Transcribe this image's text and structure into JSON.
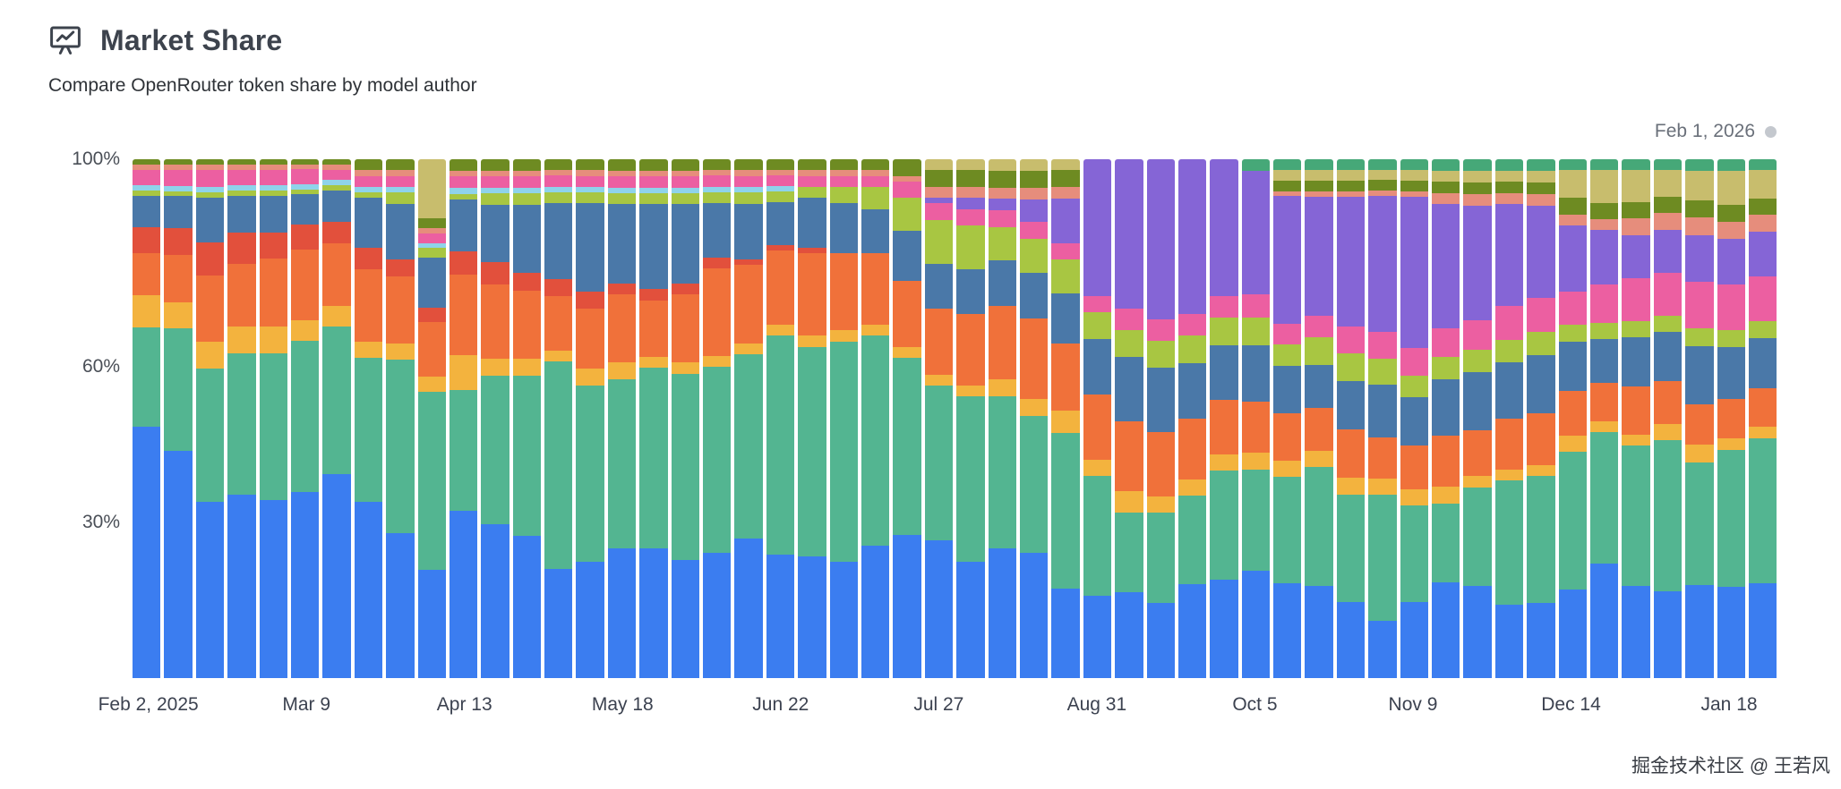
{
  "header": {
    "title": "Market Share",
    "subtitle": "Compare OpenRouter token share by model author",
    "icon": "presentation-chart-icon"
  },
  "chart": {
    "date_label": "Feb 1, 2026",
    "marker_color": "#c4c8ce"
  },
  "watermark": {
    "text": "掘金技术社区 @ 王若风"
  },
  "chart_data": {
    "type": "bar",
    "stacked": true,
    "unit": "percent-share",
    "title": "Market Share",
    "xlabel": "",
    "ylabel": "",
    "ylim": [
      0,
      100
    ],
    "grid": false,
    "legend": "none",
    "stack_order": "bottom-to-top",
    "categories": [
      "Feb 2, 2025",
      "Feb 9",
      "Feb 16",
      "Feb 23",
      "Mar 2",
      "Mar 9",
      "Mar 16",
      "Mar 23",
      "Mar 30",
      "Apr 6",
      "Apr 13",
      "Apr 20",
      "Apr 27",
      "May 4",
      "May 11",
      "May 18",
      "May 25",
      "Jun 1",
      "Jun 8",
      "Jun 15",
      "Jun 22",
      "Jun 29",
      "Jul 6",
      "Jul 13",
      "Jul 20",
      "Jul 27",
      "Aug 3",
      "Aug 10",
      "Aug 17",
      "Aug 24",
      "Aug 31",
      "Sep 7",
      "Sep 14",
      "Sep 21",
      "Sep 28",
      "Oct 5",
      "Oct 12",
      "Oct 19",
      "Oct 26",
      "Nov 2",
      "Nov 9",
      "Nov 16",
      "Nov 23",
      "Nov 30",
      "Dec 7",
      "Dec 14",
      "Dec 21",
      "Dec 28",
      "Jan 4, 2026",
      "Jan 11",
      "Jan 18",
      "Jan 25"
    ],
    "yticks": [
      {
        "label": "100%",
        "value": 100
      },
      {
        "label": "60%",
        "value": 60
      },
      {
        "label": "30%",
        "value": 30
      }
    ],
    "xticks": [
      {
        "label": "Feb 2, 2025",
        "index": 0
      },
      {
        "label": "Mar 9",
        "index": 5
      },
      {
        "label": "Apr 13",
        "index": 10
      },
      {
        "label": "May 18",
        "index": 15
      },
      {
        "label": "Jun 22",
        "index": 20
      },
      {
        "label": "Jul 27",
        "index": 25
      },
      {
        "label": "Aug 31",
        "index": 30
      },
      {
        "label": "Oct 5",
        "index": 35
      },
      {
        "label": "Nov 9",
        "index": 40
      },
      {
        "label": "Dec 14",
        "index": 45
      },
      {
        "label": "Jan 18",
        "index": 50
      }
    ],
    "series": [
      {
        "name": "blue",
        "color": "#3b7df0",
        "values": [
          48,
          43,
          32,
          35,
          34,
          37,
          39,
          32,
          26,
          22,
          29,
          27,
          25,
          20,
          21,
          23,
          23,
          21,
          23,
          25,
          23,
          22,
          21,
          24,
          26,
          25,
          21,
          23,
          22,
          16,
          15,
          16,
          14,
          17,
          18,
          19,
          18,
          17,
          14,
          11,
          14,
          17,
          16,
          13,
          13,
          16,
          21,
          17,
          16,
          16,
          16,
          17
        ]
      },
      {
        "name": "green",
        "color": "#53b591",
        "values": [
          19,
          23,
          24,
          27,
          28,
          30,
          28,
          26,
          31,
          36,
          21,
          26,
          28,
          38,
          32,
          30,
          32,
          33,
          34,
          33,
          41,
          38,
          40,
          38,
          32,
          28,
          30,
          27,
          24,
          28,
          22,
          15,
          17,
          16,
          20,
          18,
          20,
          22,
          20,
          24,
          18,
          14,
          17,
          22,
          22,
          25,
          24,
          26,
          28,
          21,
          24,
          26
        ]
      },
      {
        "name": "gold",
        "color": "#f3b33e",
        "values": [
          6,
          5,
          5,
          5,
          5,
          4,
          4,
          3,
          3,
          3,
          6,
          3,
          3,
          2,
          3,
          3,
          2,
          2,
          2,
          2,
          2,
          2,
          2,
          2,
          2,
          2,
          2,
          3,
          3,
          4,
          3,
          4,
          3,
          3,
          3,
          3,
          3,
          3,
          3,
          3,
          3,
          3,
          2,
          2,
          2,
          3,
          2,
          2,
          3,
          3,
          2,
          2
        ]
      },
      {
        "name": "orange",
        "color": "#f0713a",
        "values": [
          8,
          9,
          12,
          12,
          13,
          14,
          12,
          13,
          12,
          11,
          14,
          13,
          12,
          10,
          11,
          12,
          10,
          12,
          16,
          14,
          14,
          15,
          14,
          13,
          12,
          12,
          13,
          13,
          14,
          12,
          12,
          13,
          12,
          11,
          10,
          9,
          9,
          8,
          9,
          8,
          8,
          9,
          8,
          9,
          9,
          8,
          7,
          9,
          8,
          7,
          7,
          7
        ]
      },
      {
        "name": "red",
        "color": "#e2503c",
        "values": [
          5,
          5,
          6,
          6,
          5,
          5,
          4,
          4,
          3,
          3,
          4,
          4,
          3,
          3,
          3,
          2,
          2,
          2,
          2,
          1,
          1,
          1,
          0,
          0,
          0,
          0,
          0,
          0,
          0,
          0,
          0,
          0,
          0,
          0,
          0,
          0,
          0,
          0,
          0,
          0,
          0,
          0,
          0,
          0,
          0,
          0,
          0,
          0,
          0,
          0,
          0,
          0
        ]
      },
      {
        "name": "steel",
        "color": "#4a78a8",
        "values": [
          6,
          6,
          8,
          7,
          7,
          6,
          6,
          9,
          10,
          10,
          9,
          10,
          12,
          14,
          16,
          14,
          15,
          14,
          10,
          10,
          8,
          9,
          9,
          8,
          9,
          8,
          8,
          8,
          8,
          9,
          10,
          12,
          12,
          10,
          10,
          10,
          9,
          8,
          9,
          10,
          9,
          10,
          10,
          10,
          10,
          9,
          8,
          9,
          9,
          10,
          9,
          9
        ]
      },
      {
        "name": "lime",
        "color": "#a8c642",
        "values": [
          1,
          1,
          1,
          1,
          1,
          1,
          1,
          1,
          2,
          2,
          1,
          2,
          2,
          2,
          2,
          2,
          2,
          2,
          2,
          2,
          2,
          2,
          3,
          4,
          6,
          8,
          8,
          6,
          6,
          6,
          5,
          5,
          5,
          5,
          5,
          5,
          4,
          5,
          5,
          5,
          4,
          4,
          4,
          4,
          4,
          3,
          3,
          3,
          3,
          3,
          3,
          3
        ]
      },
      {
        "name": "cyan",
        "color": "#8fd3ea",
        "values": [
          1,
          1,
          1,
          1,
          1,
          1,
          1,
          1,
          1,
          1,
          1,
          1,
          1,
          1,
          1,
          1,
          1,
          1,
          1,
          1,
          1,
          0,
          0,
          0,
          0,
          0,
          0,
          0,
          0,
          0,
          0,
          0,
          0,
          0,
          0,
          0,
          0,
          0,
          0,
          0,
          0,
          0,
          0,
          0,
          0,
          0,
          0,
          0,
          0,
          0,
          0,
          0
        ]
      },
      {
        "name": "pink",
        "color": "#ec5fa1",
        "values": [
          3,
          3,
          3,
          3,
          3,
          3,
          2,
          2,
          2,
          2,
          2,
          2,
          2,
          2,
          2,
          2,
          2,
          2,
          2,
          2,
          2,
          2,
          2,
          2,
          3,
          3,
          3,
          3,
          3,
          3,
          3,
          4,
          4,
          4,
          4,
          4,
          4,
          4,
          5,
          5,
          5,
          5,
          5,
          6,
          6,
          6,
          7,
          8,
          8,
          8,
          8,
          8
        ]
      },
      {
        "name": "purple",
        "color": "#8565d6",
        "values": [
          0,
          0,
          0,
          0,
          0,
          0,
          0,
          0,
          0,
          0,
          0,
          0,
          0,
          0,
          0,
          0,
          0,
          0,
          0,
          0,
          0,
          0,
          0,
          0,
          0,
          1,
          2,
          2,
          4,
          8,
          25,
          28,
          30,
          28,
          25,
          22,
          24,
          22,
          24,
          26,
          28,
          22,
          20,
          18,
          16,
          12,
          10,
          8,
          8,
          8,
          8,
          8
        ]
      },
      {
        "name": "salmon",
        "color": "#e68d7c",
        "values": [
          1,
          1,
          1,
          1,
          1,
          1,
          1,
          1,
          1,
          1,
          1,
          1,
          1,
          1,
          1,
          1,
          1,
          1,
          1,
          1,
          1,
          1,
          1,
          1,
          1,
          2,
          2,
          2,
          2,
          2,
          0,
          0,
          0,
          0,
          0,
          0,
          1,
          1,
          1,
          1,
          1,
          2,
          2,
          2,
          2,
          2,
          2,
          3,
          3,
          3,
          3,
          3
        ]
      },
      {
        "name": "olive",
        "color": "#6e8b22",
        "values": [
          1,
          1,
          1,
          1,
          1,
          1,
          1,
          2,
          2,
          2,
          2,
          2,
          2,
          2,
          2,
          2,
          2,
          2,
          2,
          2,
          2,
          2,
          2,
          2,
          3,
          3,
          3,
          3,
          3,
          3,
          0,
          0,
          0,
          0,
          0,
          0,
          2,
          2,
          2,
          2,
          2,
          2,
          2,
          2,
          2,
          3,
          3,
          3,
          3,
          3,
          3,
          3
        ]
      },
      {
        "name": "khaki",
        "color": "#c8bd6d",
        "values": [
          0,
          0,
          0,
          0,
          0,
          0,
          0,
          0,
          0,
          12,
          0,
          0,
          0,
          0,
          0,
          0,
          0,
          0,
          0,
          0,
          0,
          0,
          0,
          0,
          0,
          2,
          2,
          2,
          2,
          2,
          0,
          0,
          0,
          0,
          0,
          0,
          2,
          2,
          2,
          2,
          2,
          2,
          2,
          2,
          2,
          5,
          6,
          6,
          5,
          5,
          6,
          5
        ]
      },
      {
        "name": "mint",
        "color": "#46a878",
        "values": [
          0,
          0,
          0,
          0,
          0,
          0,
          0,
          0,
          0,
          0,
          0,
          0,
          0,
          0,
          0,
          0,
          0,
          0,
          0,
          0,
          0,
          0,
          0,
          0,
          0,
          0,
          0,
          0,
          0,
          0,
          0,
          0,
          0,
          0,
          0,
          2,
          2,
          2,
          2,
          2,
          2,
          2,
          2,
          2,
          2,
          2,
          2,
          2,
          2,
          2,
          2,
          2
        ]
      }
    ]
  }
}
